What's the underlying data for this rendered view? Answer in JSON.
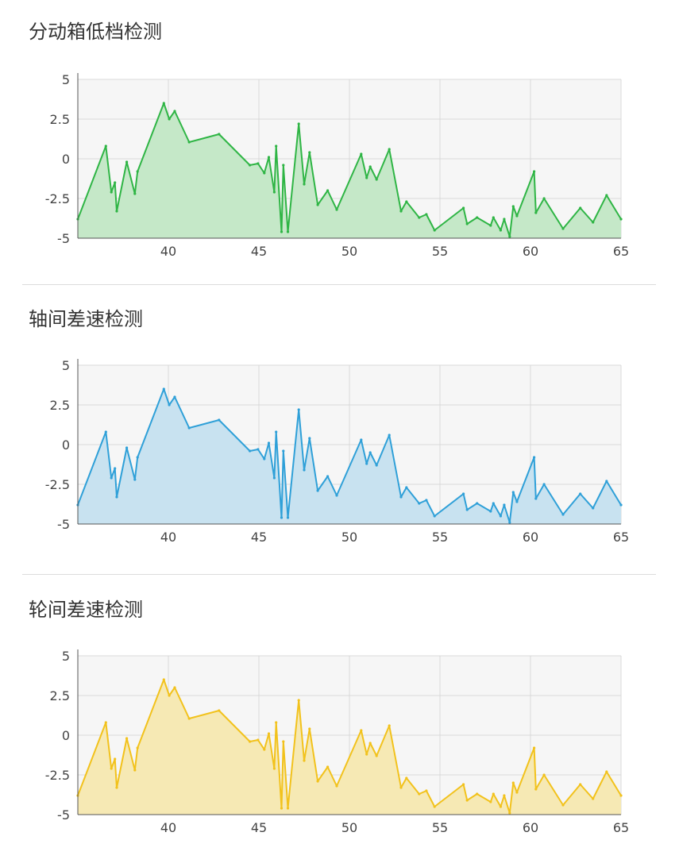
{
  "panels": [
    {
      "title": "分动箱低档检测",
      "color": "#2fb545",
      "fill": "#c5e8c8"
    },
    {
      "title": "轴间差速检测",
      "color": "#2fa0d8",
      "fill": "#c8e2f0"
    },
    {
      "title": "轮间差速检测",
      "color": "#f2c21c",
      "fill": "#f6e9b4"
    }
  ],
  "chart_data": {
    "type": "area",
    "xlim": [
      35.0,
      65.0
    ],
    "ylim": [
      -5,
      5
    ],
    "xticks": [
      40,
      45,
      50,
      55,
      60,
      65
    ],
    "yticks": [
      5,
      2.5,
      0,
      -2.5,
      -5
    ],
    "ytick_labels": [
      "5",
      "2.5",
      "0",
      "-2.5",
      "-5"
    ],
    "xtick_labels": [
      "40",
      "45",
      "50",
      "55",
      "60",
      "65"
    ],
    "grid": true,
    "x": [
      35.0,
      36.55,
      36.85,
      37.05,
      37.15,
      37.7,
      38.15,
      38.3,
      39.75,
      40.05,
      40.35,
      41.15,
      42.8,
      44.5,
      44.95,
      45.3,
      45.55,
      45.85,
      45.95,
      46.25,
      46.35,
      46.6,
      47.2,
      47.5,
      47.8,
      48.25,
      48.8,
      49.3,
      50.65,
      50.95,
      51.15,
      51.5,
      52.2,
      52.85,
      53.15,
      53.85,
      54.25,
      54.7,
      56.3,
      56.5,
      57.05,
      57.8,
      57.95,
      58.35,
      58.55,
      58.85,
      59.05,
      59.25,
      60.2,
      60.3,
      60.75,
      61.8,
      62.75,
      63.45,
      64.2,
      65.0
    ],
    "series": [
      {
        "values": [
          -3.8,
          0.8,
          -2.1,
          -1.5,
          -3.3,
          -0.2,
          -2.2,
          -0.8,
          3.5,
          2.5,
          3.0,
          1.05,
          1.55,
          -0.4,
          -0.3,
          -0.9,
          0.1,
          -2.1,
          0.8,
          -4.6,
          -0.4,
          -4.6,
          2.2,
          -1.6,
          0.4,
          -2.9,
          -2.0,
          -3.2,
          0.3,
          -1.2,
          -0.5,
          -1.3,
          0.6,
          -3.3,
          -2.7,
          -3.7,
          -3.5,
          -4.5,
          -3.1,
          -4.1,
          -3.7,
          -4.2,
          -3.7,
          -4.5,
          -3.8,
          -4.9,
          -3.0,
          -3.6,
          -0.8,
          -3.4,
          -2.5,
          -4.4,
          -3.1,
          -4.0,
          -2.3,
          -3.8
        ]
      }
    ]
  }
}
